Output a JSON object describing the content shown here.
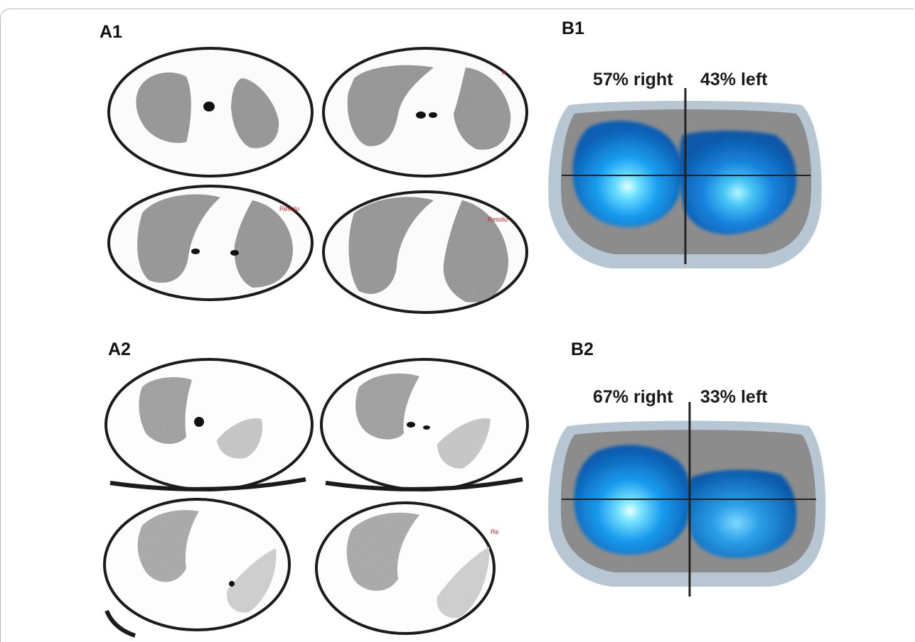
{
  "panels": {
    "a1": {
      "label": "A1"
    },
    "a2": {
      "label": "A2"
    },
    "b1": {
      "label": "B1",
      "right_text": "57% right",
      "left_text": "43% left"
    },
    "b2": {
      "label": "B2",
      "right_text": "67% right",
      "left_text": "33% left"
    }
  },
  "scan_overlay_text": {
    "a1_tr": "R",
    "a1_bl": "Resolu",
    "a1_br": "Resolu",
    "a2_br": "Re"
  },
  "colors": {
    "lung_tissue": "#8a8a8a",
    "ventilation_blue": "#1e88e5",
    "ventilation_core": "#bff3ff",
    "thorax_outer": "#b7c6d3",
    "thorax_inner": "#8c8c8c"
  }
}
